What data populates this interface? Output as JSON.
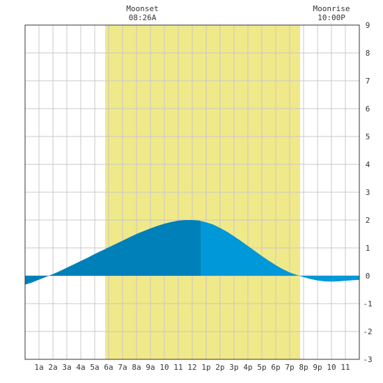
{
  "chart_data": {
    "type": "area",
    "title": "",
    "xlabel": "",
    "ylabel": "",
    "xlim": [
      0,
      24
    ],
    "ylim": [
      -3,
      9
    ],
    "x_ticks": [
      {
        "x": 1,
        "label": "1a"
      },
      {
        "x": 2,
        "label": "2a"
      },
      {
        "x": 3,
        "label": "3a"
      },
      {
        "x": 4,
        "label": "4a"
      },
      {
        "x": 5,
        "label": "5a"
      },
      {
        "x": 6,
        "label": "6a"
      },
      {
        "x": 7,
        "label": "7a"
      },
      {
        "x": 8,
        "label": "8a"
      },
      {
        "x": 9,
        "label": "9a"
      },
      {
        "x": 10,
        "label": "10"
      },
      {
        "x": 11,
        "label": "11"
      },
      {
        "x": 12,
        "label": "12"
      },
      {
        "x": 13,
        "label": "1p"
      },
      {
        "x": 14,
        "label": "2p"
      },
      {
        "x": 15,
        "label": "3p"
      },
      {
        "x": 16,
        "label": "4p"
      },
      {
        "x": 17,
        "label": "5p"
      },
      {
        "x": 18,
        "label": "6p"
      },
      {
        "x": 19,
        "label": "7p"
      },
      {
        "x": 20,
        "label": "8p"
      },
      {
        "x": 21,
        "label": "9p"
      },
      {
        "x": 22,
        "label": "10"
      },
      {
        "x": 23,
        "label": "11"
      }
    ],
    "y_ticks": [
      -3,
      -2,
      -1,
      0,
      1,
      2,
      3,
      4,
      5,
      6,
      7,
      8,
      9
    ],
    "grid": true,
    "daylight": {
      "start": 5.75,
      "end": 19.75
    },
    "annotations": [
      {
        "x": 8.43,
        "label": "Moonset",
        "time": "08:26A"
      },
      {
        "x": 22.0,
        "label": "Moonrise",
        "time": "10:00P"
      }
    ],
    "tide_split_x": 12.6,
    "tide_curve": {
      "x": [
        0,
        0.5,
        1,
        1.5,
        2,
        2.5,
        3,
        3.5,
        4,
        4.5,
        5,
        5.5,
        6,
        6.5,
        7,
        7.5,
        8,
        8.5,
        9,
        9.5,
        10,
        10.5,
        11,
        11.5,
        12,
        12.5,
        13,
        13.5,
        14,
        14.5,
        15,
        15.5,
        16,
        16.5,
        17,
        17.5,
        18,
        18.5,
        19,
        19.5,
        20,
        20.5,
        21,
        21.5,
        22,
        22.5,
        23,
        23.5,
        24
      ],
      "y": [
        -0.32,
        -0.24,
        -0.14,
        -0.04,
        0.06,
        0.17,
        0.29,
        0.41,
        0.53,
        0.65,
        0.78,
        0.9,
        1.02,
        1.14,
        1.26,
        1.38,
        1.5,
        1.6,
        1.7,
        1.79,
        1.87,
        1.93,
        1.98,
        2.0,
        2.0,
        1.98,
        1.92,
        1.84,
        1.72,
        1.58,
        1.42,
        1.25,
        1.07,
        0.89,
        0.71,
        0.54,
        0.38,
        0.24,
        0.12,
        0.03,
        -0.05,
        -0.12,
        -0.17,
        -0.2,
        -0.21,
        -0.2,
        -0.18,
        -0.16,
        -0.15
      ]
    },
    "colors": {
      "daylight": "#f0e98a",
      "grid": "#c8c8c8",
      "tide_before": "#0080b8",
      "tide_after": "#0098d8",
      "axis": "#333333"
    }
  }
}
